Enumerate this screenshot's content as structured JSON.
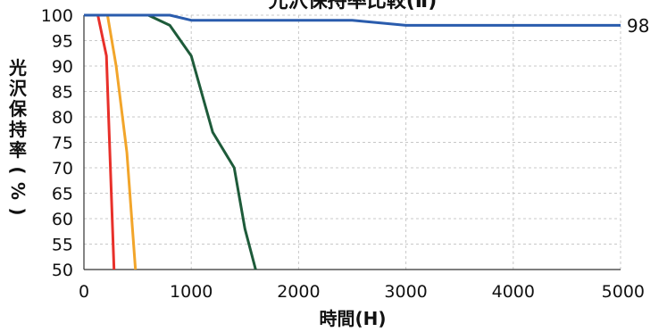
{
  "chart_data": {
    "type": "line",
    "title": "光沢保持率比較(Ⅱ)",
    "xlabel": "時間(H)",
    "ylabel": "光沢保持率(%)",
    "xlim": [
      0,
      5000
    ],
    "ylim": [
      50,
      100
    ],
    "x_ticks": [
      "0",
      "1000",
      "2000",
      "3000",
      "4000",
      "5000"
    ],
    "y_ticks": [
      "50",
      "55",
      "60",
      "65",
      "70",
      "75",
      "80",
      "85",
      "90",
      "95",
      "100"
    ],
    "grid": true,
    "series": [
      {
        "color": "#e8302a",
        "points": [
          [
            0,
            100
          ],
          [
            130,
            100
          ],
          [
            210,
            92
          ],
          [
            280,
            50
          ]
        ]
      },
      {
        "color": "#f2a52a",
        "points": [
          [
            0,
            100
          ],
          [
            220,
            100
          ],
          [
            300,
            90
          ],
          [
            400,
            73
          ],
          [
            480,
            50
          ]
        ]
      },
      {
        "color": "#1e5b3a",
        "points": [
          [
            0,
            100
          ],
          [
            600,
            100
          ],
          [
            800,
            98
          ],
          [
            1000,
            92
          ],
          [
            1200,
            77
          ],
          [
            1400,
            70
          ],
          [
            1500,
            58
          ],
          [
            1600,
            50
          ]
        ]
      },
      {
        "color": "#2a5cad",
        "points": [
          [
            0,
            100
          ],
          [
            800,
            100
          ],
          [
            1000,
            99
          ],
          [
            2500,
            99
          ],
          [
            3000,
            98
          ],
          [
            5000,
            98
          ]
        ]
      }
    ],
    "end_label": "98"
  }
}
